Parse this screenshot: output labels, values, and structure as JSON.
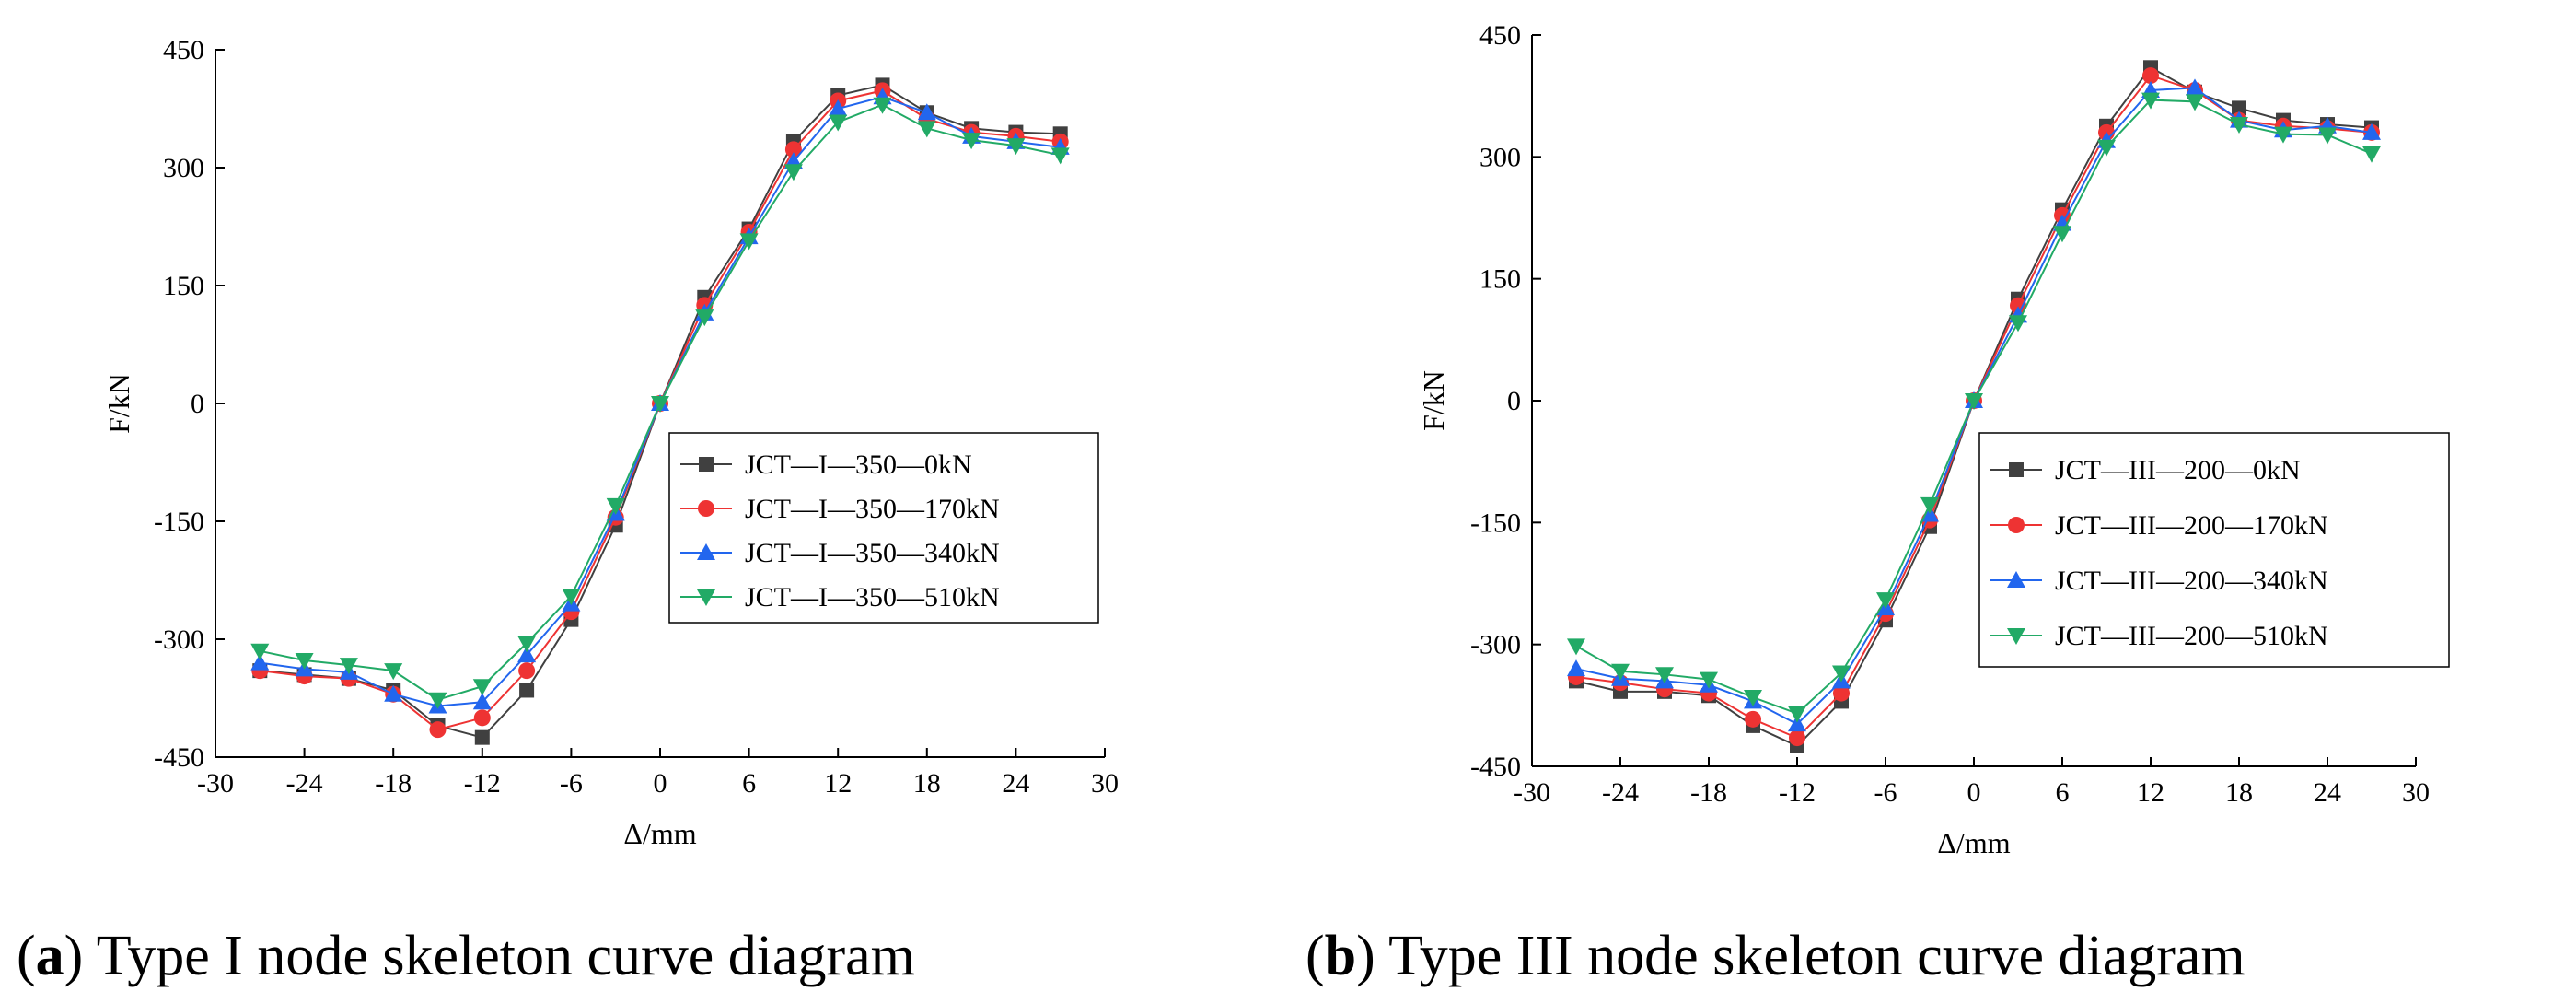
{
  "chart_data": [
    {
      "type": "line",
      "caption_label": "a",
      "caption_text": "Type I node skeleton curve diagram",
      "xlabel": "Δ/mm",
      "ylabel": "F/kN",
      "xlim": [
        -30,
        30
      ],
      "ylim": [
        -450,
        450
      ],
      "xticks": [
        -30,
        -24,
        -18,
        -12,
        -6,
        0,
        6,
        12,
        18,
        24,
        30
      ],
      "yticks": [
        -450,
        -300,
        -150,
        0,
        150,
        300,
        450
      ],
      "x": [
        -27,
        -24,
        -21,
        -18,
        -15,
        -12,
        -9,
        -6,
        -3,
        0,
        3,
        6,
        9,
        12,
        15,
        18,
        21,
        24,
        27
      ],
      "series": [
        {
          "name": "JCT—I—350—0kN",
          "color": "#404040",
          "marker": "square",
          "values": [
            -340,
            -345,
            -350,
            -365,
            -410,
            -425,
            -365,
            -275,
            -155,
            0,
            135,
            222,
            333,
            392,
            405,
            370,
            350,
            345,
            343
          ]
        },
        {
          "name": "JCT—I—350—170kN",
          "color": "#ee3333",
          "marker": "circle",
          "values": [
            -340,
            -347,
            -350,
            -370,
            -415,
            -400,
            -340,
            -265,
            -145,
            0,
            125,
            218,
            323,
            385,
            398,
            362,
            345,
            340,
            333
          ]
        },
        {
          "name": "JCT—I—350—340kN",
          "color": "#2266ee",
          "marker": "triangle-up",
          "values": [
            -330,
            -338,
            -342,
            -370,
            -385,
            -380,
            -320,
            -255,
            -140,
            0,
            115,
            212,
            308,
            375,
            390,
            370,
            340,
            333,
            326
          ]
        },
        {
          "name": "JCT—I—350—510kN",
          "color": "#22aa66",
          "marker": "triangle-down",
          "values": [
            -315,
            -327,
            -333,
            -340,
            -377,
            -360,
            -305,
            -245,
            -130,
            0,
            110,
            207,
            295,
            358,
            380,
            350,
            335,
            328,
            316
          ]
        }
      ]
    },
    {
      "type": "line",
      "caption_label": "b",
      "caption_text": "Type III node skeleton curve diagram",
      "xlabel": "Δ/mm",
      "ylabel": "F/kN",
      "xlim": [
        -30,
        30
      ],
      "ylim": [
        -450,
        450
      ],
      "xticks": [
        -30,
        -24,
        -18,
        -12,
        -6,
        0,
        6,
        12,
        18,
        24,
        30
      ],
      "yticks": [
        -450,
        -300,
        -150,
        0,
        150,
        300,
        450
      ],
      "x": [
        -27,
        -24,
        -21,
        -18,
        -15,
        -12,
        -9,
        -6,
        -3,
        0,
        3,
        6,
        9,
        12,
        15,
        18,
        21,
        24,
        27
      ],
      "series": [
        {
          "name": "JCT—III—200—0kN",
          "color": "#404040",
          "marker": "square",
          "values": [
            -345,
            -358,
            -358,
            -363,
            -400,
            -425,
            -370,
            -270,
            -155,
            0,
            125,
            235,
            338,
            410,
            380,
            360,
            345,
            340,
            336
          ]
        },
        {
          "name": "JCT—III—200—170kN",
          "color": "#ee3333",
          "marker": "circle",
          "values": [
            -340,
            -347,
            -355,
            -360,
            -392,
            -415,
            -360,
            -262,
            -147,
            0,
            117,
            228,
            330,
            400,
            382,
            345,
            338,
            335,
            330
          ]
        },
        {
          "name": "JCT—III—200—340kN",
          "color": "#2266ee",
          "marker": "triangle-up",
          "values": [
            -330,
            -342,
            -345,
            -350,
            -370,
            -398,
            -345,
            -255,
            -140,
            0,
            105,
            218,
            320,
            382,
            385,
            345,
            333,
            338,
            330
          ]
        },
        {
          "name": "JCT—III—200—510kN",
          "color": "#22aa66",
          "marker": "triangle-down",
          "values": [
            -302,
            -333,
            -337,
            -343,
            -365,
            -385,
            -335,
            -245,
            -128,
            0,
            96,
            206,
            312,
            370,
            368,
            340,
            328,
            327,
            304
          ]
        }
      ]
    }
  ]
}
